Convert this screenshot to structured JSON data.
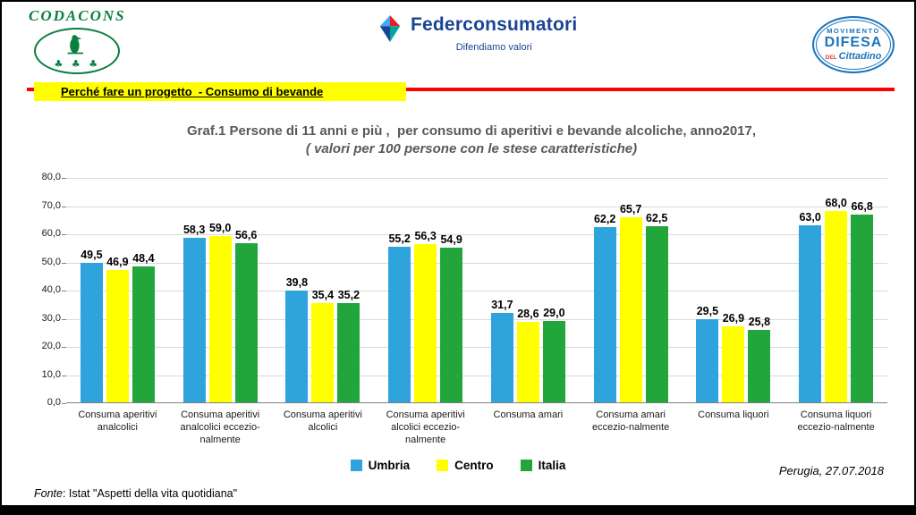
{
  "header": {
    "codacons": {
      "name": "CODACONS",
      "shamrocks": "♣ ♣ ♣"
    },
    "federconsumatori": {
      "name": "Federconsumatori",
      "tagline": "Difendiamo valori"
    },
    "mdc": {
      "line1": "MOVIMENTO",
      "line2": "DIFESA",
      "line3": "DEL",
      "line4": "Cittadino"
    }
  },
  "banner": {
    "title": "Perché fare un progetto  - Consumo di bevande"
  },
  "chart_data": {
    "type": "bar",
    "title": "Graf.1 Persone di 11 anni e più ,  per consumo di aperitivi e bevande alcoliche, anno2017,",
    "subtitle": "( valori per 100 persone con le stese caratteristiche)",
    "categories": [
      "Consuma aperitivi analcolici",
      "Consuma aperitivi analcolici eccezio-nalmente",
      "Consuma aperitivi alcolici",
      "Consuma aperitivi alcolici eccezio-nalmente",
      "Consuma amari",
      "Consuma amari eccezio-nalmente",
      "Consuma liquori",
      "Consuma liquori eccezio-nalmente"
    ],
    "series": [
      {
        "name": "Umbria",
        "color": "#2EA3DC",
        "values": [
          49.5,
          58.3,
          39.8,
          55.2,
          31.7,
          62.2,
          29.5,
          63.0
        ]
      },
      {
        "name": "Centro",
        "color": "#FFFF00",
        "values": [
          46.9,
          59.0,
          35.4,
          56.3,
          28.6,
          65.7,
          26.9,
          68.0
        ]
      },
      {
        "name": "Italia",
        "color": "#22A63C",
        "values": [
          48.4,
          56.6,
          35.2,
          54.9,
          29.0,
          62.5,
          25.8,
          66.8
        ]
      }
    ],
    "ylim": [
      0,
      80
    ],
    "ytick_step": 10,
    "decimal_separator": ",",
    "grid": true,
    "legend_position": "bottom"
  },
  "footer": {
    "place_date": "Perugia, 27.07.2018",
    "source_label": "Fonte",
    "source_text": ": Istat \"Aspetti della vita quotidiana\""
  }
}
